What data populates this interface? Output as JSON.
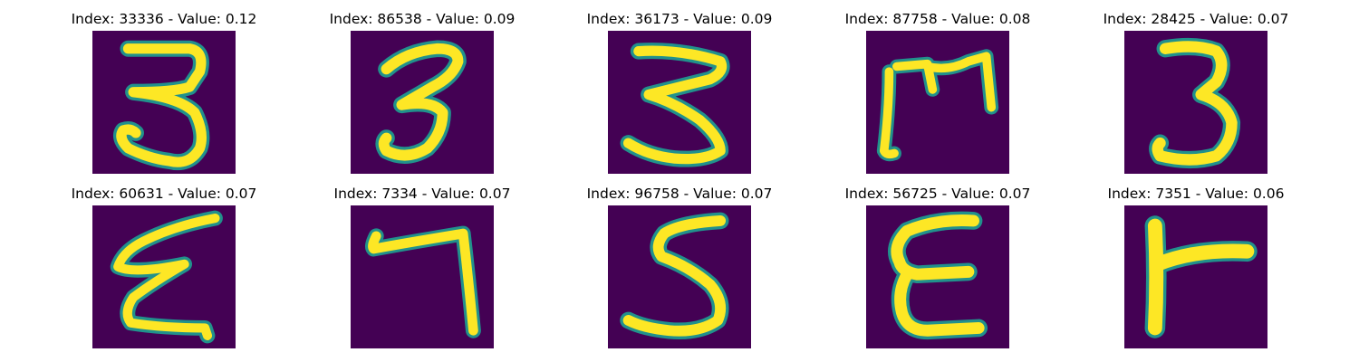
{
  "figure": {
    "background_color": "#ffffff",
    "colormap": {
      "low": "#440154",
      "mid": "#21918c",
      "high": "#fde725"
    },
    "panels": [
      {
        "title": "Index: 33336 - Value: 0.12",
        "depicts": "digit 3"
      },
      {
        "title": "Index: 86538 - Value: 0.09",
        "depicts": "digit 3"
      },
      {
        "title": "Index: 36173 - Value: 0.09",
        "depicts": "digit 3 (flat top)"
      },
      {
        "title": "Index: 87758 - Value: 0.08",
        "depicts": "digit 3 rotated (m-like)"
      },
      {
        "title": "Index: 28425 - Value: 0.07",
        "depicts": "digit 3"
      },
      {
        "title": "Index: 60631 - Value: 0.07",
        "depicts": "digit 3 mirrored (E-like)"
      },
      {
        "title": "Index: 7334 - Value: 0.07",
        "depicts": "digit 7 (mirrored)"
      },
      {
        "title": "Index: 96758 - Value: 0.07",
        "depicts": "digit 5 / S-like"
      },
      {
        "title": "Index: 56725 - Value: 0.07",
        "depicts": "digit 3 mirrored (E-like)"
      },
      {
        "title": "Index: 7351 - Value: 0.06",
        "depicts": "digit 7 rotated (T-like)"
      }
    ]
  }
}
